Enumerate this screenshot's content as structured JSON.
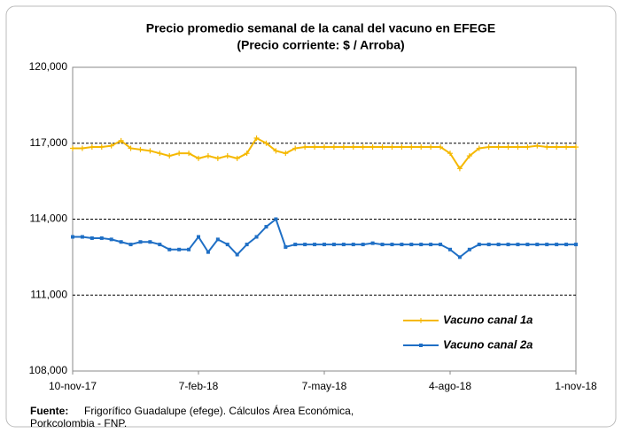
{
  "chart_data": {
    "type": "line",
    "title": "Precio promedio semanal de la canal del vacuno en EFEGE",
    "subtitle": "(Precio corriente: $ / Arroba)",
    "categories": [
      "10-nov-17",
      null,
      null,
      null,
      null,
      null,
      null,
      null,
      null,
      null,
      null,
      null,
      null,
      "7-feb-18",
      null,
      null,
      null,
      null,
      null,
      null,
      null,
      null,
      null,
      null,
      null,
      null,
      "7-may-18",
      null,
      null,
      null,
      null,
      null,
      null,
      null,
      null,
      null,
      null,
      null,
      null,
      "4-ago-18",
      null,
      null,
      null,
      null,
      null,
      null,
      null,
      null,
      null,
      null,
      null,
      null,
      "1-nov-18"
    ],
    "series": [
      {
        "name": "Vacuno canal 1a",
        "color": "#f5b800",
        "marker": "plus",
        "values": [
          116800,
          116800,
          116850,
          116850,
          116900,
          117100,
          116800,
          116750,
          116700,
          116600,
          116500,
          116600,
          116600,
          116400,
          116500,
          116400,
          116500,
          116400,
          116600,
          117200,
          117000,
          116700,
          116600,
          116800,
          116850,
          116850,
          116850,
          116850,
          116850,
          116850,
          116850,
          116850,
          116850,
          116850,
          116850,
          116850,
          116850,
          116850,
          116850,
          116600,
          116000,
          116500,
          116800,
          116850,
          116850,
          116850,
          116850,
          116850,
          116900,
          116850,
          116850,
          116850,
          116850
        ]
      },
      {
        "name": "Vacuno canal 2a",
        "color": "#1f6fc5",
        "marker": "square",
        "values": [
          113300,
          113300,
          113250,
          113250,
          113200,
          113100,
          113000,
          113100,
          113100,
          113000,
          112800,
          112800,
          112800,
          113300,
          112700,
          113200,
          113000,
          112600,
          113000,
          113300,
          113700,
          114000,
          112900,
          113000,
          113000,
          113000,
          113000,
          113000,
          113000,
          113000,
          113000,
          113050,
          113000,
          113000,
          113000,
          113000,
          113000,
          113000,
          113000,
          112800,
          112500,
          112800,
          113000,
          113000,
          113000,
          113000,
          113000,
          113000,
          113000,
          113000,
          113000,
          113000,
          113000
        ]
      }
    ],
    "ylim": [
      108000,
      120000
    ],
    "yticks": [
      {
        "value": 108000,
        "label": "108,000"
      },
      {
        "value": 111000,
        "label": "111,000"
      },
      {
        "value": 114000,
        "label": "114,000"
      },
      {
        "value": 117000,
        "label": "117,000"
      },
      {
        "value": 120000,
        "label": "120,000"
      }
    ],
    "grid": true,
    "legend": "lower right",
    "source_label": "Fuente:",
    "source": [
      "Frigorífico Guadalupe (efege). Cálculos Área Económica,",
      "Porkcolombia  - FNP."
    ]
  }
}
